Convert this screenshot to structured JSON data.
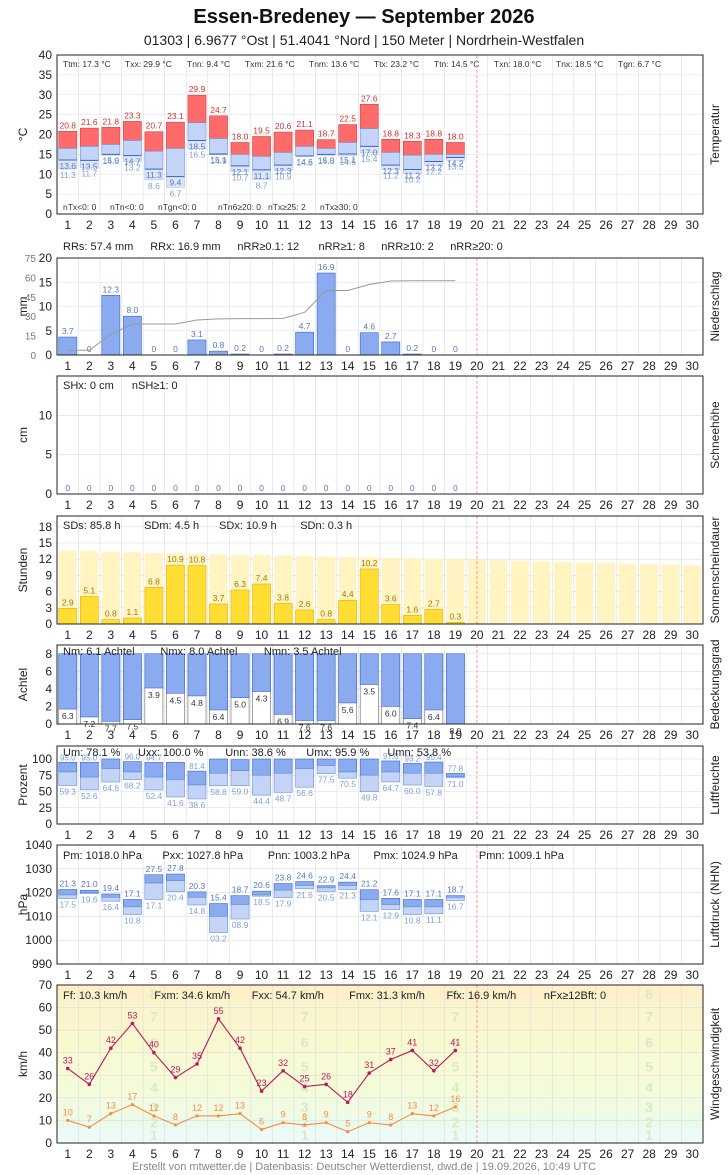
{
  "header": {
    "title": "Essen-Bredeney  —  September 2026",
    "subtitle": "01303  |  6.9677 °Ost  |  51.4041 °Nord  |  150 Meter  |  Nordrhein-Westfalen"
  },
  "footer": "Erstellt von mtwetter.de | Datenbasis: Deutscher Wetterdienst, dwd.de | 19.09.2026, 10:49 UTC",
  "colors": {
    "tmax": "#ff6b6b",
    "tmin": "#a9c4f5",
    "rain": "#8aabf0",
    "sun": "#ffdd33",
    "sunbg": "#fff4c2",
    "cloud": "#8aabf0",
    "marker": "#ff9999",
    "grid": "#dddddd",
    "gust": "#c0185a",
    "wind": "#ff8844"
  },
  "x_days": [
    "1",
    "2",
    "3",
    "4",
    "5",
    "6",
    "7",
    "8",
    "9",
    "10",
    "11",
    "12",
    "13",
    "14",
    "15",
    "16",
    "17",
    "18",
    "19",
    "20",
    "21",
    "22",
    "23",
    "24",
    "25",
    "26",
    "27",
    "28",
    "29",
    "30"
  ],
  "chart_data": [
    {
      "id": "temperatur",
      "type": "bar",
      "ylabel": "°C",
      "side_label": "Temperatur",
      "ylim": [
        0,
        40
      ],
      "yticks": [
        "0",
        "5",
        "10",
        "15",
        "20",
        "25",
        "30",
        "35",
        "40"
      ],
      "stats_top": [
        "Ttm: 17.3 °C",
        "Txx: 29.9 °C",
        "Tnn: 9.4 °C",
        "Txm: 21.6 °C",
        "Tnm: 13.6 °C",
        "Ttx: 23.2 °C",
        "Ttn: 14.5 °C",
        "Txn: 18.0 °C",
        "Tnx: 18.5 °C",
        "Tgn: 6.7 °C"
      ],
      "stats_bottom": [
        "nTx<0: 0",
        "nTn<0: 0",
        "nTgn<0: 0",
        "nTn6≥20: 0",
        "nTx≥25: 2",
        "nTx≥30: 0"
      ],
      "tmax": [
        20.8,
        21.6,
        21.8,
        23.3,
        20.7,
        23.1,
        29.9,
        24.7,
        18.0,
        19.5,
        20.6,
        21.1,
        18.7,
        22.5,
        27.6,
        18.8,
        18.3,
        18.8,
        18.0
      ],
      "tmean": [
        16.5,
        17.0,
        17.5,
        18.5,
        15.8,
        16.5,
        23.0,
        19.0,
        15.0,
        14.5,
        15.5,
        17.0,
        16.5,
        18.0,
        21.5,
        15.5,
        14.8,
        15.0,
        15.0
      ],
      "tmin": [
        13.6,
        13.5,
        15.0,
        14.7,
        11.3,
        9.4,
        18.5,
        15.1,
        12.1,
        11.1,
        12.3,
        14.6,
        15.0,
        15.1,
        17.0,
        12.3,
        11.2,
        13.2,
        14.2
      ],
      "tground": [
        11.3,
        11.7,
        14.8,
        13.2,
        8.6,
        6.7,
        16.5,
        14.9,
        10.7,
        8.7,
        10.9,
        14.5,
        14.8,
        14.6,
        15.4,
        11.2,
        10.2,
        12.2,
        13.5
      ],
      "tmax_labels": [
        "20.8",
        "21.6",
        "21.8",
        "23.3",
        "20.7",
        "23.1",
        "29.9",
        "24.7",
        "18.0",
        "19.5",
        "20.6",
        "21.1",
        "18.7",
        "22.5",
        "27.6",
        "18.8",
        "18.3",
        "18.8",
        "18.0"
      ],
      "tmin_labels": [
        "13.6",
        "13.5",
        "15.0",
        "14.7",
        "11.3",
        "9.4",
        "18.5",
        "15.1",
        "12.1",
        "11.1",
        "12.3",
        "14.6",
        "15.0",
        "15.1",
        "17.0",
        "12.3",
        "11.2",
        "13.2",
        "14.2"
      ],
      "tground_labels": [
        "11.3",
        "11.7",
        "14.8",
        "13.2",
        "8.6",
        "6.7",
        "16.5",
        "14.9",
        "10.7",
        "8.7",
        "10.9",
        "14.5",
        "14.8",
        "14.6",
        "15.4",
        "11.2",
        "10.2",
        "12.2",
        "13.5"
      ]
    },
    {
      "id": "niederschlag",
      "type": "bar",
      "ylabel": "mm",
      "side_label": "Niederschlag",
      "ylim": [
        0,
        20
      ],
      "yticks": [
        "0",
        "5",
        "10",
        "15",
        "20"
      ],
      "y2ticks": [
        "0",
        "15",
        "30",
        "45",
        "60",
        "75"
      ],
      "stats": [
        "RRs: 57.4 mm",
        "RRx: 16.9 mm",
        "nRR≥0.1: 12",
        "nRR≥1: 8",
        "nRR≥10: 2",
        "nRR≥20: 0"
      ],
      "values": [
        3.7,
        0,
        12.3,
        8.0,
        0,
        0,
        3.1,
        0.8,
        0.2,
        0,
        0.2,
        4.7,
        16.9,
        0,
        4.6,
        2.7,
        0.2,
        0,
        0
      ],
      "value_labels": [
        "3.7",
        "0",
        "12.3",
        "8.0",
        "0",
        "0",
        "3.1",
        "0.8",
        "0.2",
        "0",
        "0.2",
        "4.7",
        "16.9",
        "0",
        "4.6",
        "2.7",
        "0.2",
        "0",
        "0"
      ],
      "cumulative": [
        3.7,
        3.7,
        16.0,
        24.0,
        24.0,
        24.0,
        27.1,
        27.9,
        28.1,
        28.1,
        28.3,
        33.0,
        49.9,
        49.9,
        54.5,
        57.2,
        57.4,
        57.4,
        57.4
      ]
    },
    {
      "id": "schneehoehe",
      "type": "bar",
      "ylabel": "cm",
      "side_label": "Schneehöhe",
      "ylim": [
        0,
        15
      ],
      "yticks": [
        "0",
        "5",
        "10"
      ],
      "stats": [
        "SHx: 0 cm",
        "nSH≥1: 0"
      ],
      "value_labels": [
        "0",
        "0",
        "0",
        "0",
        "0",
        "0",
        "0",
        "0",
        "0",
        "0",
        "0",
        "0",
        "0",
        "0",
        "0",
        "0",
        "0",
        "0",
        "0"
      ]
    },
    {
      "id": "sonnenschein",
      "type": "bar",
      "ylabel": "Stunden",
      "side_label": "Sonnenscheindauer",
      "ylim": [
        0,
        20
      ],
      "yticks": [
        "0",
        "3",
        "6",
        "9",
        "12",
        "15",
        "18"
      ],
      "stats": [
        "SDs: 85.8 h",
        "SDm: 4.5 h",
        "SDx: 10.9 h",
        "SDn: 0.3 h"
      ],
      "values": [
        2.9,
        5.1,
        0.8,
        1.1,
        6.8,
        10.9,
        10.8,
        3.7,
        6.3,
        7.4,
        3.8,
        2.6,
        0.8,
        4.4,
        10.2,
        3.6,
        1.6,
        2.7,
        0.3
      ],
      "value_labels": [
        "2.9",
        "5.1",
        "0.8",
        "1.1",
        "6.8",
        "10.9",
        "10.8",
        "3.7",
        "6.3",
        "7.4",
        "3.8",
        "2.6",
        "0.8",
        "4.4",
        "10.2",
        "3.6",
        "1.6",
        "2.7",
        "0.3"
      ],
      "possible": [
        13.6,
        13.5,
        13.4,
        13.3,
        13.2,
        13.1,
        13.0,
        12.9,
        12.8,
        12.8,
        12.7,
        12.6,
        12.5,
        12.4,
        12.3,
        12.2,
        12.2,
        12.1,
        12.0,
        11.9,
        11.8,
        11.7,
        11.6,
        11.5,
        11.4,
        11.3,
        11.2,
        11.1,
        11.0,
        10.9
      ]
    },
    {
      "id": "bedeckung",
      "type": "bar",
      "ylabel": "Achtel",
      "side_label": "Bedeckungsgrad",
      "ylim": [
        0,
        9
      ],
      "yticks": [
        "0",
        "2",
        "4",
        "6",
        "8"
      ],
      "stats": [
        "Nm: 6.1 Achtel",
        "Nmx: 8.0 Achtel",
        "Nmn: 3.5 Achtel"
      ],
      "values": [
        6.3,
        7.2,
        7.7,
        7.5,
        3.9,
        4.5,
        4.8,
        6.4,
        5.0,
        4.3,
        6.9,
        7.6,
        7.6,
        5.6,
        3.5,
        6.0,
        7.4,
        6.4,
        8.0
      ],
      "value_labels": [
        "6.3",
        "7.2",
        "7.7",
        "7.5",
        "3.9",
        "4.5",
        "4.8",
        "6.4",
        "5.0",
        "4.3",
        "6.9",
        "7.6",
        "7.6",
        "5.6",
        "3.5",
        "6.0",
        "7.4",
        "6.4",
        "8.0"
      ]
    },
    {
      "id": "luftfeuchte",
      "type": "bar",
      "ylabel": "Prozent",
      "side_label": "Luftfeuchte",
      "ylim": [
        0,
        120
      ],
      "yticks": [
        "0",
        "25",
        "50",
        "75",
        "100"
      ],
      "stats": [
        "Um: 78.1 %",
        "Uxx: 100.0 %",
        "Unn: 38.6 %",
        "Umx: 95.9 %",
        "Umn: 53.8 %"
      ],
      "umax": [
        95.0,
        95.0,
        100,
        96.0,
        94.7,
        95.0,
        81.4,
        100,
        99.0,
        100,
        100,
        100,
        100,
        100,
        100,
        97.0,
        93.2,
        95.4,
        77.8
      ],
      "umean": [
        80,
        72,
        85,
        80,
        72,
        68,
        60,
        78,
        82,
        75,
        78,
        85,
        90,
        80,
        75,
        80,
        78,
        78,
        73
      ],
      "umin": [
        59.3,
        52.6,
        64.6,
        68.2,
        52.4,
        41.6,
        38.6,
        58.8,
        59.0,
        44.4,
        48.7,
        56.6,
        77.5,
        70.5,
        49.8,
        64.7,
        60.0,
        57.8,
        71.0
      ],
      "umax_labels": [
        "95.0",
        "95.0",
        "",
        "96.0",
        "94.7",
        "",
        "81.4",
        "",
        "",
        "",
        "",
        "",
        "",
        "",
        "",
        "97.0",
        "93.2",
        "95.4",
        "77.8"
      ],
      "umin_labels": [
        "59.3",
        "52.6",
        "64.6",
        "68.2",
        "52.4",
        "41.6",
        "38.6",
        "58.8",
        "59.0",
        "44.4",
        "48.7",
        "56.6",
        "77.5",
        "70.5",
        "49.8",
        "64.7",
        "60.0",
        "57.8",
        "71.0"
      ]
    },
    {
      "id": "luftdruck",
      "type": "bar",
      "ylabel": "hPa",
      "side_label": "Luftdruck (NHN)",
      "ylim": [
        990,
        1040
      ],
      "yticks": [
        "990",
        "1000",
        "1010",
        "1020",
        "1030",
        "1040"
      ],
      "stats": [
        "Pm: 1018.0 hPa",
        "Pxx: 1027.8 hPa",
        "Pnn: 1003.2 hPa",
        "Pmx: 1024.9 hPa",
        "Pmn: 1009.1 hPa"
      ],
      "pmax": [
        1021.3,
        1021.0,
        1019.4,
        1017.1,
        1027.5,
        1027.8,
        1020.3,
        1015.4,
        1018.7,
        1020.6,
        1023.8,
        1024.6,
        1022.9,
        1024.4,
        1021.2,
        1017.6,
        1017.1,
        1017.1,
        1018.7
      ],
      "pmean": [
        1019,
        1020,
        1018,
        1014,
        1024,
        1025,
        1018,
        1010,
        1015,
        1019,
        1021,
        1023,
        1022,
        1023,
        1017,
        1015,
        1014,
        1014,
        1018
      ],
      "pmin": [
        1017.5,
        1019.6,
        1016.4,
        1010.8,
        1017.1,
        1020.4,
        1014.8,
        1003.2,
        1008.9,
        1018.5,
        1017.9,
        1021.6,
        1020.5,
        1021.3,
        1012.1,
        1012.9,
        1010.8,
        1011.1,
        1016.7
      ],
      "pmax_labels": [
        "21.3",
        "21.0",
        "19.4",
        "17.1",
        "27.5",
        "27.8",
        "20.3",
        "15.4",
        "18.7",
        "20.6",
        "23.8",
        "24.6",
        "22.9",
        "24.4",
        "21.2",
        "17.6",
        "17.1",
        "17.1",
        "18.7"
      ],
      "pmin_labels": [
        "17.5",
        "19.6",
        "16.4",
        "10.8",
        "17.1",
        "20.4",
        "14.8",
        "03.2",
        "08.9",
        "18.5",
        "17.9",
        "21.6",
        "20.5",
        "21.3",
        "12.1",
        "12.9",
        "10.8",
        "11.1",
        "16.7"
      ]
    },
    {
      "id": "wind",
      "type": "line",
      "ylabel": "km/h",
      "side_label": "Windgeschwindigkeit",
      "ylim": [
        0,
        70
      ],
      "yticks": [
        "0",
        "10",
        "20",
        "30",
        "40",
        "50",
        "60",
        "70"
      ],
      "stats": [
        "Ff: 10.3 km/h",
        "Fxm: 34.6 km/h",
        "Fxx: 54.7 km/h",
        "Fmx: 31.3 km/h",
        "Ffx: 16.9 km/h",
        "nFx≥12Bft: 0"
      ],
      "beaufort_bounds": [
        0,
        1,
        6,
        12,
        20,
        29,
        39,
        50,
        62,
        70
      ],
      "beaufort_labels": [
        "1",
        "2",
        "3",
        "4",
        "5",
        "6",
        "7",
        "8"
      ],
      "gust": [
        33,
        26,
        42,
        53,
        40,
        29,
        35,
        55,
        42,
        23,
        32,
        25,
        26,
        18,
        31,
        37,
        41,
        32,
        41
      ],
      "gust_labels": [
        "33",
        "26",
        "42",
        "53",
        "40",
        "29",
        "35",
        "55",
        "42",
        "23",
        "32",
        "25",
        "26",
        "18",
        "31",
        "37",
        "41",
        "32",
        "41"
      ],
      "mean": [
        10,
        7,
        13,
        17,
        12,
        8,
        12,
        12,
        13,
        6,
        9,
        8,
        9,
        5,
        9,
        8,
        13,
        12,
        16
      ],
      "mean_labels": [
        "10",
        "7",
        "13",
        "17",
        "12",
        "8",
        "12",
        "12",
        "13",
        "6",
        "9",
        "8",
        "9",
        "5",
        "9",
        "8",
        "13",
        "12",
        "16"
      ]
    }
  ]
}
